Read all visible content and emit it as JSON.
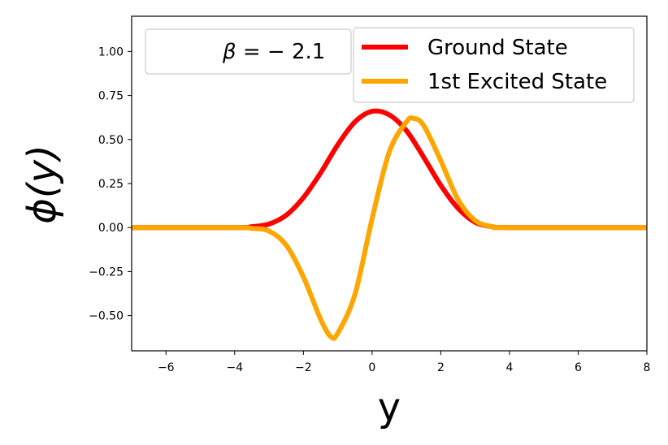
{
  "chart_data": {
    "type": "line",
    "xlabel": "y",
    "ylabel": "ϕ(y)",
    "xlim": [
      -7,
      8
    ],
    "ylim": [
      -0.7,
      1.2
    ],
    "xticks": [
      -6,
      -4,
      -2,
      0,
      2,
      4,
      6,
      8
    ],
    "xtick_labels": [
      "−6",
      "−4",
      "−2",
      "0",
      "2",
      "4",
      "6",
      "8"
    ],
    "yticks": [
      -0.5,
      -0.25,
      0,
      0.25,
      0.5,
      0.75,
      1.0
    ],
    "ytick_labels": [
      "−0.50",
      "−0.25",
      "0.00",
      "0.25",
      "0.50",
      "0.75",
      "1.00"
    ],
    "grid": false,
    "legend_position": "top-right",
    "annotation": {
      "prefix": "β = ",
      "value": "− 2.1"
    },
    "series": [
      {
        "name": "Ground State",
        "color": "#ff0000",
        "x": [
          -7,
          -4,
          -3.5,
          -3,
          -2.5,
          -2,
          -1.5,
          -1,
          -0.5,
          0,
          0.5,
          1,
          1.5,
          2,
          2.5,
          3,
          3.5,
          4,
          8
        ],
        "y": [
          0,
          0,
          0.005,
          0.02,
          0.07,
          0.17,
          0.31,
          0.47,
          0.6,
          0.66,
          0.64,
          0.55,
          0.4,
          0.24,
          0.11,
          0.03,
          0.005,
          0,
          0
        ]
      },
      {
        "name": "1st Excited State",
        "color": "#ffa500",
        "x": [
          -7,
          -4,
          -3.5,
          -3,
          -2.5,
          -2,
          -1.5,
          -1.2,
          -1,
          -0.5,
          0,
          0.5,
          1,
          1.2,
          1.5,
          2,
          2.5,
          3,
          3.5,
          4,
          8
        ],
        "y": [
          0,
          0,
          -0.005,
          -0.02,
          -0.1,
          -0.28,
          -0.52,
          -0.62,
          -0.6,
          -0.38,
          0.05,
          0.43,
          0.6,
          0.62,
          0.58,
          0.38,
          0.16,
          0.04,
          0.005,
          0,
          0
        ]
      }
    ]
  }
}
